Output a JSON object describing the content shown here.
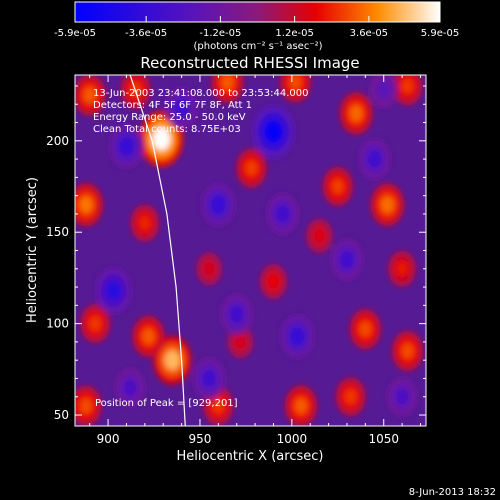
{
  "chart_data": {
    "type": "heatmap",
    "title": "Reconstructed RHESSI Image",
    "xlabel": "Heliocentric X (arcsec)",
    "ylabel": "Heliocentric Y (arcsec)",
    "xlim": [
      882,
      1073
    ],
    "ylim": [
      44,
      236
    ],
    "x_ticks": [
      900,
      950,
      1000,
      1050
    ],
    "x_tick_labels": [
      "900",
      "950",
      "1000",
      "1050"
    ],
    "y_ticks": [
      50,
      100,
      150,
      200
    ],
    "y_tick_labels": [
      "50",
      "100",
      "150",
      "200"
    ],
    "colorbar": {
      "range": [
        -5.9e-05,
        5.9e-05
      ],
      "tick_values": [
        -5.9e-05,
        -3.6e-05,
        -1.2e-05,
        1.2e-05,
        3.6e-05,
        5.9e-05
      ],
      "tick_labels": [
        "-5.9e-05",
        "-3.6e-05",
        "-1.2e-05",
        "1.2e-05",
        "3.6e-05",
        "5.9e-05"
      ],
      "unit_label": "(photons cm⁻² s⁻¹ asec⁻²)",
      "colors": [
        "#0000ff",
        "#5a14b8",
        "#8b1a7a",
        "#e60000",
        "#ff8c00",
        "#ffffff"
      ]
    },
    "annotations": [
      "13-Jun-2003 23:41:08.000 to 23:53:44.000",
      "Detectors: 4F 5F 6F 7F 8F, Att 1",
      "Energy Range: 25.0 - 50.0 keV",
      "Clean      Total counts: 8.75E+03"
    ],
    "peak_text": "Position of Peak = [929,201]",
    "timestamp": "8-Jun-2013 18:32",
    "grid": false,
    "limb_line_color": "#ffffff",
    "blobs": [
      {
        "x": 929,
        "y": 201,
        "value": 5.9e-05
      },
      {
        "x": 890,
        "y": 225,
        "value": 3e-05
      },
      {
        "x": 915,
        "y": 228,
        "value": 2.5e-05
      },
      {
        "x": 965,
        "y": 232,
        "value": 3e-05
      },
      {
        "x": 1002,
        "y": 232,
        "value": 2.8e-05
      },
      {
        "x": 1035,
        "y": 215,
        "value": 3.2e-05
      },
      {
        "x": 1063,
        "y": 230,
        "value": 2.5e-05
      },
      {
        "x": 1025,
        "y": 175,
        "value": 2.6e-05
      },
      {
        "x": 1052,
        "y": 165,
        "value": 3.3e-05
      },
      {
        "x": 978,
        "y": 185,
        "value": 2.6e-05
      },
      {
        "x": 920,
        "y": 155,
        "value": 2.2e-05
      },
      {
        "x": 888,
        "y": 165,
        "value": 3.4e-05
      },
      {
        "x": 893,
        "y": 100,
        "value": 2.5e-05
      },
      {
        "x": 888,
        "y": 55,
        "value": 2.8e-05
      },
      {
        "x": 935,
        "y": 80,
        "value": 4.5e-05
      },
      {
        "x": 922,
        "y": 93,
        "value": 3e-05
      },
      {
        "x": 960,
        "y": 55,
        "value": 2.5e-05
      },
      {
        "x": 990,
        "y": 123,
        "value": 1.8e-05
      },
      {
        "x": 1040,
        "y": 97,
        "value": 2.8e-05
      },
      {
        "x": 1063,
        "y": 85,
        "value": 2.8e-05
      },
      {
        "x": 1005,
        "y": 55,
        "value": 3e-05
      },
      {
        "x": 1032,
        "y": 60,
        "value": 2.5e-05
      },
      {
        "x": 1060,
        "y": 130,
        "value": 2e-05
      },
      {
        "x": 1015,
        "y": 148,
        "value": 1.6e-05
      },
      {
        "x": 955,
        "y": 130,
        "value": 1.4e-05
      },
      {
        "x": 972,
        "y": 90,
        "value": 1.4e-05
      },
      {
        "x": 990,
        "y": 205,
        "value": -5.5e-05
      },
      {
        "x": 940,
        "y": 218,
        "value": -3e-05
      },
      {
        "x": 910,
        "y": 197,
        "value": -3.5e-05
      },
      {
        "x": 960,
        "y": 165,
        "value": -3.5e-05
      },
      {
        "x": 995,
        "y": 160,
        "value": -3e-05
      },
      {
        "x": 1045,
        "y": 190,
        "value": -3e-05
      },
      {
        "x": 903,
        "y": 118,
        "value": -4e-05
      },
      {
        "x": 970,
        "y": 105,
        "value": -3e-05
      },
      {
        "x": 1003,
        "y": 93,
        "value": -3.5e-05
      },
      {
        "x": 955,
        "y": 70,
        "value": -3e-05
      },
      {
        "x": 1030,
        "y": 135,
        "value": -3e-05
      },
      {
        "x": 912,
        "y": 65,
        "value": -2.5e-05
      },
      {
        "x": 1060,
        "y": 60,
        "value": -2.5e-05
      },
      {
        "x": 1050,
        "y": 228,
        "value": -2e-05
      }
    ],
    "limb_curve": [
      {
        "x": 912,
        "y": 236
      },
      {
        "x": 924,
        "y": 200
      },
      {
        "x": 932,
        "y": 160
      },
      {
        "x": 937,
        "y": 120
      },
      {
        "x": 940,
        "y": 80
      },
      {
        "x": 942,
        "y": 44
      }
    ]
  }
}
